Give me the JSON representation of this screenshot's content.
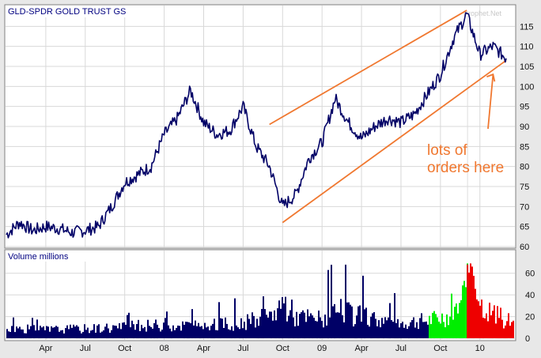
{
  "chart_data": [
    {
      "type": "line",
      "title": "GLD-SPDR GOLD TRUST GS",
      "ylim": [
        60,
        120
      ],
      "y_ticks": [
        60,
        65,
        70,
        75,
        80,
        85,
        90,
        95,
        100,
        105,
        110,
        115
      ],
      "x_ticks": [
        "Apr",
        "Jul",
        "Oct",
        "08",
        "Apr",
        "Jul",
        "Oct",
        "09",
        "Apr",
        "Jul",
        "Oct",
        "10"
      ],
      "series": [
        {
          "color": "#000066",
          "points": [
            [
              "2007-01",
              63
            ],
            [
              "2007-02",
              66
            ],
            [
              "2007-03",
              64
            ],
            [
              "2007-04",
              65
            ],
            [
              "2007-05",
              64.5
            ],
            [
              "2007-06",
              63.5
            ],
            [
              "2007-07",
              64
            ],
            [
              "2007-08",
              65
            ],
            [
              "2007-09",
              70
            ],
            [
              "2007-10",
              76
            ],
            [
              "2007-11",
              78
            ],
            [
              "2007-12",
              80
            ],
            [
              "2008-01",
              88
            ],
            [
              "2008-02",
              92
            ],
            [
              "2008-03",
              99
            ],
            [
              "2008-04",
              91
            ],
            [
              "2008-05",
              88
            ],
            [
              "2008-06",
              89
            ],
            [
              "2008-07",
              95
            ],
            [
              "2008-08",
              85
            ],
            [
              "2008-09",
              80
            ],
            [
              "2008-10",
              70
            ],
            [
              "2008-11",
              73
            ],
            [
              "2008-12",
              82
            ],
            [
              "2009-01",
              86
            ],
            [
              "2009-02",
              97
            ],
            [
              "2009-03",
              91
            ],
            [
              "2009-04",
              87
            ],
            [
              "2009-05",
              90
            ],
            [
              "2009-06",
              92
            ],
            [
              "2009-07",
              91
            ],
            [
              "2009-08",
              93
            ],
            [
              "2009-09",
              98
            ],
            [
              "2009-10",
              103
            ],
            [
              "2009-11",
              112
            ],
            [
              "2009-12",
              118
            ],
            [
              "2010-01",
              108
            ],
            [
              "2010-02",
              110
            ],
            [
              "2010-03",
              107
            ]
          ]
        }
      ],
      "trend_lines": [
        {
          "color": "#f07830",
          "from": [
            "2008-09",
            90.5
          ],
          "to": [
            "2009-12",
            119
          ]
        },
        {
          "color": "#f07830",
          "from": [
            "2008-10",
            66
          ],
          "to": [
            "2010-03",
            106.5
          ]
        }
      ],
      "annotation": {
        "lines": [
          "lots of",
          "orders here"
        ],
        "color": "#f07830",
        "arrow_to": [
          "2010-02",
          103
        ]
      },
      "watermark": "Prophet.Net",
      "grid": true
    },
    {
      "type": "bar",
      "title": "Volume millions",
      "ylim": [
        0,
        70
      ],
      "y_ticks": [
        0,
        20,
        40,
        60
      ],
      "highlight": [
        {
          "from": "2009-09",
          "to": "2009-11",
          "color": "#00ee00"
        },
        {
          "from": "2009-12",
          "to": "2010-03",
          "color": "#ee0000"
        }
      ],
      "base_color": "#000066",
      "volumes": [
        [
          "2007-01",
          10
        ],
        [
          "2007-04",
          9
        ],
        [
          "2007-07",
          10
        ],
        [
          "2007-10",
          12
        ],
        [
          "2008-01",
          14
        ],
        [
          "2008-04",
          13
        ],
        [
          "2008-07",
          16
        ],
        [
          "2008-09",
          22
        ],
        [
          "2008-10",
          38
        ],
        [
          "2008-11",
          22
        ],
        [
          "2009-01",
          20
        ],
        [
          "2009-02",
          28
        ],
        [
          "2009-04",
          22
        ],
        [
          "2009-07",
          16
        ],
        [
          "2009-09",
          18
        ],
        [
          "2009-11",
          24
        ],
        [
          "2009-12",
          68
        ],
        [
          "2010-01",
          28
        ],
        [
          "2010-02",
          26
        ],
        [
          "2010-03",
          18
        ]
      ]
    }
  ]
}
